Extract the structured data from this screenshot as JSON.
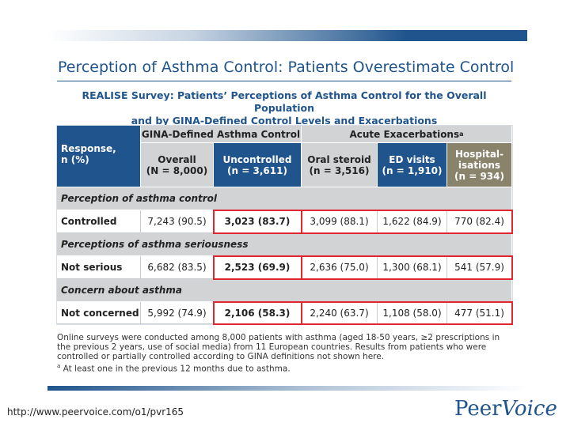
{
  "slide": {
    "title": "Perception of Asthma Control: Patients Overestimate Control",
    "subtitle_line1": "REALISE Survey: Patients’ Perceptions of Asthma Control for the Overall Population",
    "subtitle_line2": "and by GINA-Defined Control Levels and Exacerbations"
  },
  "table": {
    "group_headers": {
      "response": "Response,",
      "response_sub": "n (%)",
      "gina": "GINA-Defined Asthma Control",
      "acute": "Acute Exacerbations",
      "acute_sup": "a"
    },
    "columns": [
      {
        "name": "Overall",
        "n": "(N = 8,000)"
      },
      {
        "name": "Uncontrolled",
        "n": "(n = 3,611)"
      },
      {
        "name": "Oral steroid",
        "n": "(n = 3,516)"
      },
      {
        "name": "ED visits",
        "n": "(n = 1,910)"
      },
      {
        "name": "Hospital-",
        "name2": "isations",
        "n": "(n = 934)"
      }
    ],
    "sections": [
      {
        "heading": "Perception of asthma control",
        "label": "Controlled",
        "values": [
          "7,243 (90.5)",
          "3,023 (83.7)",
          "3,099 (88.1)",
          "1,622 (84.9)",
          "770 (82.4)"
        ]
      },
      {
        "heading": "Perceptions of asthma seriousness",
        "label": "Not serious",
        "values": [
          "6,682 (83.5)",
          "2,523 (69.9)",
          "2,636 (75.0)",
          "1,300 (68.1)",
          "541 (57.9)"
        ]
      },
      {
        "heading": "Concern about asthma",
        "label": "Not concerned",
        "values": [
          "5,992 (74.9)",
          "2,106 (58.3)",
          "2,240 (63.7)",
          "1,108 (58.0)",
          "477 (51.1)"
        ]
      }
    ]
  },
  "footnote": {
    "line1": "Online surveys were conducted among 8,000 patients with asthma (aged 18-50 years, ≥2 prescriptions in",
    "line2": "the previous 2 years, use of social media) from 11 European countries. Results from patients who were",
    "line3": "controlled or partially controlled according to GINA definitions not shown here.",
    "note_sup": "a",
    "note": " At least one in the previous 12 months due to asthma."
  },
  "footer": {
    "url": "http://www.peervoice.com/o1/pvr165",
    "logo_part1": "Peer",
    "logo_part2": "Voice"
  },
  "colors": {
    "navy": "#1f548c",
    "gray": "#d1d3d4",
    "tan": "#8a836b",
    "highlight_red": "#e0262e"
  }
}
